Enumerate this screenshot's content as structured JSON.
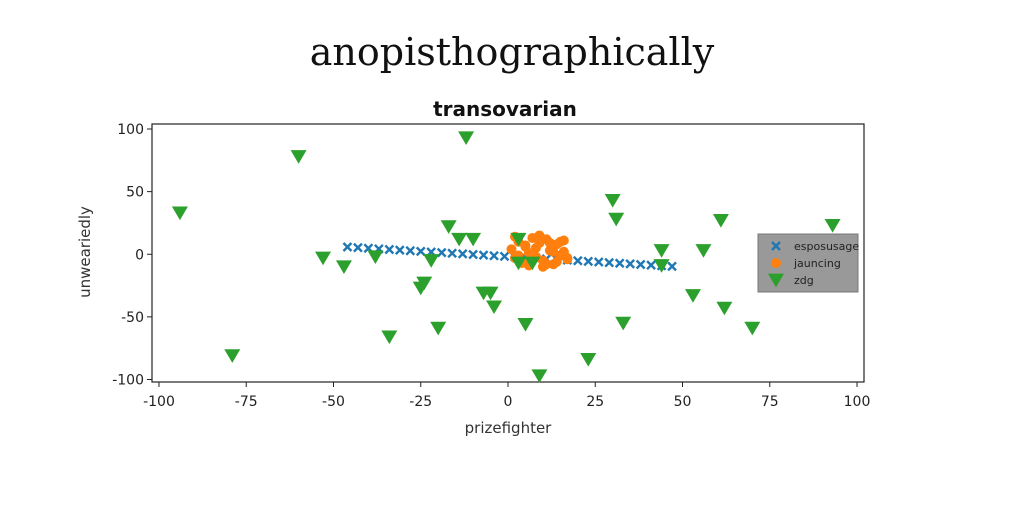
{
  "page": {
    "title": "anopisthographically"
  },
  "chart_data": {
    "type": "scatter",
    "title": "transovarian",
    "xlabel": "prizefighter",
    "ylabel": "unweariedly",
    "xlim": [
      -102,
      102
    ],
    "ylim": [
      -102,
      104
    ],
    "xticks": [
      -100,
      -75,
      -50,
      -25,
      0,
      25,
      50,
      75,
      100
    ],
    "yticks": [
      100,
      50,
      0,
      -50,
      -100
    ],
    "grid": false,
    "legend_position": "right",
    "series": [
      {
        "name": "esposusage",
        "marker": "x",
        "color": "#1f77b4",
        "x": [
          -46,
          -43,
          -40,
          -37,
          -34,
          -31,
          -28,
          -25,
          -22,
          -19,
          -16,
          -13,
          -10,
          -7,
          -4,
          -1,
          2,
          5,
          8,
          11,
          14,
          17,
          20,
          23,
          26,
          29,
          32,
          35,
          38,
          41,
          44,
          47
        ],
        "y": [
          5.8,
          5.3,
          4.8,
          4.3,
          3.8,
          3.3,
          2.8,
          2.3,
          1.8,
          1.3,
          0.8,
          0.3,
          -0.2,
          -0.7,
          -1.2,
          -1.7,
          -2.2,
          -2.7,
          -3.2,
          -3.7,
          -4.2,
          -4.7,
          -5.2,
          -5.7,
          -6.2,
          -6.7,
          -7.2,
          -7.7,
          -8.2,
          -8.7,
          -9.2,
          -9.7
        ]
      },
      {
        "name": "jauncing",
        "marker": "o",
        "color": "#ff7f0e",
        "x": [
          1,
          2,
          3,
          4,
          5,
          6,
          7,
          8,
          9,
          10,
          11,
          12,
          13,
          14,
          15,
          16,
          17,
          2,
          4,
          6,
          8,
          10,
          12,
          14,
          16,
          3,
          5,
          7,
          9,
          11,
          13,
          15,
          17
        ],
        "y": [
          4,
          -3,
          10,
          -6,
          7,
          1,
          13,
          -2,
          9,
          -5,
          12,
          3,
          -8,
          8,
          -1,
          11,
          -4,
          14,
          -7,
          -9,
          5,
          -10,
          9,
          -6,
          2,
          -1,
          6,
          -4,
          15,
          -8,
          2,
          10,
          -3
        ]
      },
      {
        "name": "zdg",
        "marker": "v",
        "color": "#2ca02c",
        "x": [
          -94,
          -79,
          -60,
          -53,
          -47,
          -38,
          -34,
          -25,
          -24,
          -22,
          -20,
          -17,
          -14,
          -12,
          -10,
          -7,
          -5,
          -4,
          3,
          3,
          5,
          7,
          9,
          23,
          30,
          31,
          33,
          44,
          44,
          53,
          56,
          62,
          61,
          70,
          93
        ],
        "y": [
          33,
          -81,
          78,
          -3,
          -10,
          -2,
          -66,
          -27,
          -23,
          -5,
          -59,
          22,
          12,
          93,
          12,
          -31,
          -31,
          -42,
          12,
          -7,
          -56,
          -7,
          -97,
          -84,
          43,
          28,
          -55,
          -9,
          3,
          -33,
          3,
          -43,
          27,
          -59,
          23
        ]
      }
    ]
  }
}
